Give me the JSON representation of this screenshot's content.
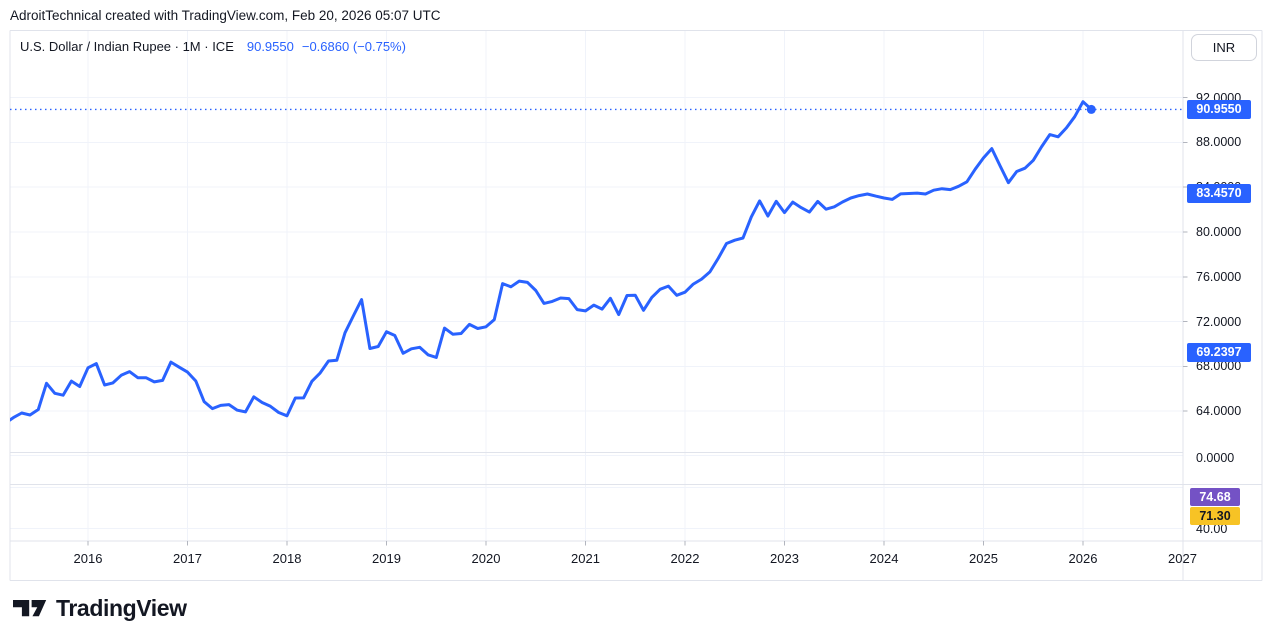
{
  "header": {
    "attribution": "AdroitTechnical created with TradingView.com, Feb 20, 2026 05:07 UTC"
  },
  "legend": {
    "symbol_line": "U.S. Dollar / Indian Rupee · 1M · ICE",
    "last": "90.9550",
    "change": "−0.6860 (−0.75%)"
  },
  "price_axis": {
    "currency": "INR",
    "main_ticks": [
      92,
      88,
      84,
      80,
      76,
      72,
      68,
      64
    ],
    "badges": [
      {
        "text": "90.9550",
        "value": 90.955,
        "bg": "#2962FF",
        "fg": "#FFFFFF"
      },
      {
        "text": "83.4570",
        "value": 83.457,
        "bg": "#2962FF",
        "fg": "#FFFFFF"
      },
      {
        "text": "69.2397",
        "value": 69.2397,
        "bg": "#2962FF",
        "fg": "#FFFFFF"
      }
    ],
    "sub_pane_label": "0.0000",
    "lower_pane": {
      "badges": [
        {
          "text": "74.68",
          "bg": "#7452C5",
          "fg": "#FFFFFF"
        },
        {
          "text": "71.30",
          "bg": "#F7C325",
          "fg": "#131722"
        }
      ],
      "tick_label": "40.00"
    }
  },
  "time_axis": {
    "years": [
      "2016",
      "2017",
      "2018",
      "2019",
      "2020",
      "2021",
      "2022",
      "2023",
      "2024",
      "2025",
      "2026",
      "2027"
    ]
  },
  "footer": {
    "logo_text": "TradingView"
  },
  "chart_data": {
    "type": "line",
    "title": "U.S. Dollar / Indian Rupee",
    "interval": "1M",
    "exchange": "ICE",
    "currency": "INR",
    "last_price": 90.955,
    "change": -0.686,
    "change_pct": -0.75,
    "prev_monthly_close": 91.641,
    "last_price_line": 90.955,
    "grid": true,
    "legend_position": "top-left",
    "y_ticks": [
      64,
      68,
      72,
      76,
      80,
      84,
      88,
      92
    ],
    "y_visible_range": [
      60.3,
      98.0
    ],
    "x_tick_years": [
      2016,
      2017,
      2018,
      2019,
      2020,
      2021,
      2022,
      2023,
      2024,
      2025,
      2026,
      2027
    ],
    "series": [
      {
        "name": "USD/INR monthly close",
        "start": "2015-03",
        "step": "1M",
        "values": [
          62.9,
          63.42,
          63.83,
          63.65,
          64.14,
          66.48,
          65.59,
          65.42,
          66.68,
          66.2,
          67.87,
          68.24,
          66.33,
          66.52,
          67.2,
          67.53,
          66.98,
          66.98,
          66.61,
          66.74,
          68.38,
          67.92,
          67.48,
          66.69,
          64.85,
          64.22,
          64.51,
          64.58,
          64.08,
          63.93,
          65.28,
          64.77,
          64.43,
          63.87,
          63.58,
          65.17,
          65.18,
          66.66,
          67.41,
          68.47,
          68.54,
          70.99,
          72.49,
          73.96,
          69.59,
          69.77,
          71.09,
          70.75,
          69.16,
          69.56,
          69.7,
          69.03,
          68.8,
          71.41,
          70.87,
          70.93,
          71.74,
          71.38,
          71.53,
          72.17,
          75.39,
          75.1,
          75.61,
          75.5,
          74.77,
          73.62,
          73.8,
          74.1,
          74.05,
          73.07,
          72.95,
          73.47,
          73.11,
          74.08,
          72.62,
          74.33,
          74.34,
          73.0,
          74.16,
          74.88,
          75.17,
          74.34,
          74.62,
          75.34,
          75.79,
          76.43,
          77.64,
          78.97,
          79.27,
          79.46,
          81.35,
          82.78,
          81.43,
          82.74,
          81.73,
          82.67,
          82.18,
          81.78,
          82.73,
          82.04,
          82.25,
          82.68,
          83.04,
          83.25,
          83.39,
          83.21,
          83.04,
          82.91,
          83.4,
          83.44,
          83.47,
          83.39,
          83.73,
          83.87,
          83.79,
          84.08,
          84.48,
          85.61,
          86.62,
          87.45,
          85.9,
          84.4,
          85.4,
          85.7,
          86.4,
          87.6,
          88.7,
          88.5,
          89.3,
          90.3,
          91.64,
          90.955
        ]
      }
    ],
    "colors": {
      "line": "#2962FF",
      "grid": "#F0F3FA",
      "frame": "#E0E3EB",
      "tick": "#B2B5BE",
      "text": "#131722"
    }
  }
}
